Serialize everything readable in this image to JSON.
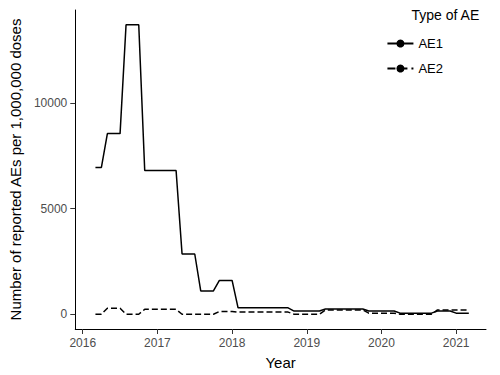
{
  "chart_data": {
    "type": "line",
    "x_label": "Year",
    "y_label": "Number of reported AEs per 1,000,000 doses",
    "legend_title": "Type of AE",
    "legend": "top-right",
    "grid": false,
    "x": [
      2016.17,
      2016.25,
      2016.33,
      2016.5,
      2016.58,
      2016.75,
      2016.83,
      2017.25,
      2017.33,
      2017.5,
      2017.58,
      2017.75,
      2017.83,
      2018,
      2018.08,
      2018.75,
      2018.83,
      2019.17,
      2019.25,
      2019.75,
      2019.83,
      2020.17,
      2020.25,
      2020.67,
      2020.75,
      2020.92,
      2021,
      2021.17
    ],
    "series": [
      {
        "name": "AE1",
        "color": "#000000",
        "line_style": "solid",
        "values": [
          6950,
          6950,
          8550,
          8550,
          13700,
          13700,
          6800,
          6800,
          2850,
          2850,
          1100,
          1100,
          1600,
          1600,
          300,
          300,
          150,
          150,
          250,
          250,
          150,
          150,
          50,
          50,
          150,
          150,
          50,
          50
        ]
      },
      {
        "name": "AE2",
        "color": "#000000",
        "line_style": "dashed",
        "values": [
          0,
          0,
          280,
          280,
          0,
          0,
          230,
          230,
          0,
          0,
          0,
          0,
          130,
          130,
          100,
          100,
          0,
          0,
          200,
          200,
          50,
          50,
          0,
          0,
          200,
          200,
          200,
          200
        ]
      }
    ],
    "xlim": [
      2015.9,
      2021.4
    ],
    "xticks": [
      2016,
      2017,
      2018,
      2019,
      2020,
      2021
    ],
    "ylim": [
      -700,
      14400
    ],
    "yticks": [
      0,
      5000,
      10000
    ]
  }
}
